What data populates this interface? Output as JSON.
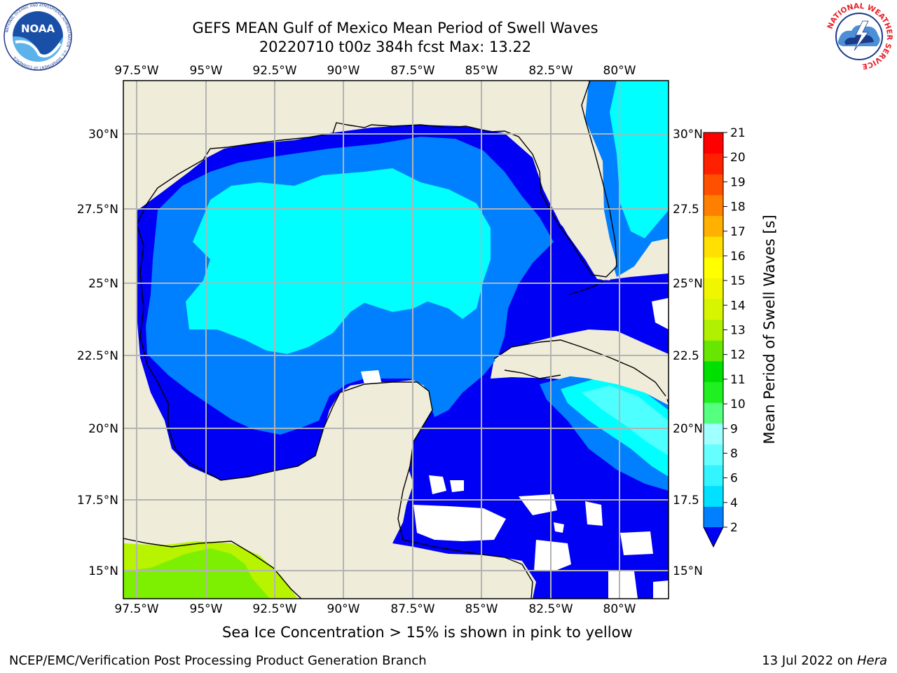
{
  "title": {
    "line1": "GEFS MEAN Gulf of Mexico Mean Period of Swell Waves",
    "line2": "20220710 t00z 384h fcst   Max: 13.22"
  },
  "logos": {
    "left": {
      "text": "NOAA",
      "ring_text": "NATIONAL OCEANIC AND ATMOSPHERIC ADMINISTRATION · U.S. DEPARTMENT OF COMMERCE"
    },
    "right": {
      "ring_text": "NATIONAL WEATHER SERVICE"
    }
  },
  "map": {
    "longitudes": [
      "97.5°W",
      "95°W",
      "92.5°W",
      "90°W",
      "87.5°W",
      "85°W",
      "82.5°W",
      "80°W"
    ],
    "lon_values": [
      -97.5,
      -95,
      -92.5,
      -90,
      -87.5,
      -85,
      -82.5,
      -80
    ],
    "latitudes_left": [
      "30°N",
      "27.5°N",
      "25°N",
      "22.5°N",
      "20°N",
      "17.5°N",
      "15°N"
    ],
    "latitudes_right": [
      "30°N",
      "27.5",
      "25°N",
      "22.5",
      "20°N",
      "17.5",
      "15°N"
    ],
    "lat_values": [
      30,
      27.5,
      25,
      22.5,
      20,
      17.5,
      15
    ],
    "extent": {
      "lon_min": -98,
      "lon_max": -78.2,
      "lat_min": 14,
      "lat_max": 31.9
    },
    "colors": {
      "land": "#efecd9",
      "lev2": "#0000f5",
      "lev4": "#0080ff",
      "lev6": "#00ffff",
      "lev8": "#4dffff",
      "green_lo": "#7cf000",
      "green_hi": "#b8f400"
    }
  },
  "colorbar": {
    "label": "Mean Period of Swell Waves [s]",
    "ticks": [
      "21",
      "20",
      "19",
      "18",
      "17",
      "16",
      "15",
      "14",
      "13",
      "12",
      "11",
      "10",
      "9",
      "8",
      "6",
      "4",
      "2"
    ],
    "colors": [
      "#0080ff",
      "#00e0ff",
      "#33f5ff",
      "#66ffff",
      "#a0ffff",
      "#55ff80",
      "#20f020",
      "#00e000",
      "#66e600",
      "#b0f000",
      "#d8f500",
      "#f0f500",
      "#ffff00",
      "#ffe000",
      "#ffb000",
      "#ff8000",
      "#ff5000",
      "#ff2000",
      "#ff0000"
    ],
    "extend_color": "#0000f5"
  },
  "caption": "Sea Ice Concentration > 15% is shown in pink to yellow",
  "footer": {
    "left": "NCEP/EMC/Verification Post Processing Product Generation Branch",
    "date": "13 Jul 2022 on ",
    "machine": "Hera"
  }
}
